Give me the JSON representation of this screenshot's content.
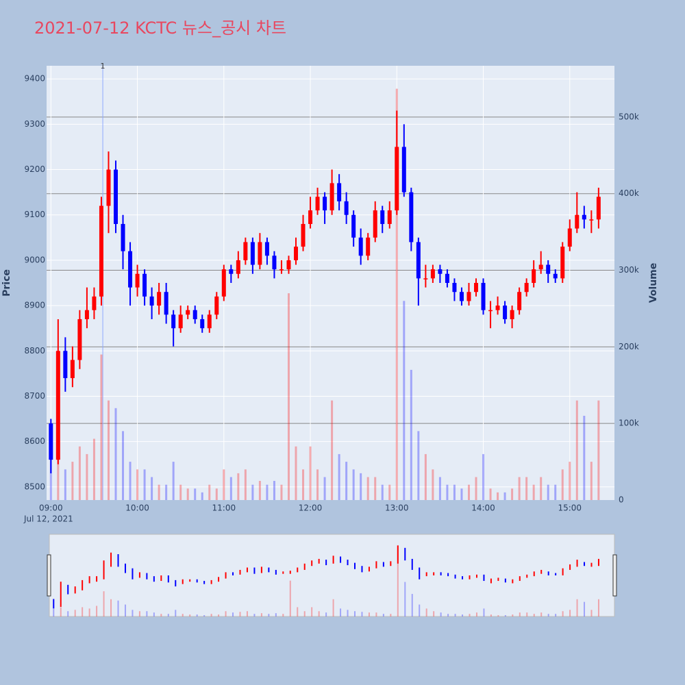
{
  "chart_data": {
    "type": "candlestick",
    "title": "2021-07-12 KCTC 뉴스_공시 차트",
    "title_color": "#e8475f",
    "y_label": "Price",
    "y2_label": "Volume",
    "x_date_label": "Jul 12, 2021",
    "increasing_color": "#ff0000",
    "decreasing_color": "#0000ff",
    "annotation": {
      "x": "09:36",
      "text": "1"
    },
    "x": [
      "09:00",
      "09:05",
      "09:10",
      "09:15",
      "09:20",
      "09:25",
      "09:30",
      "09:35",
      "09:40",
      "09:45",
      "09:50",
      "09:55",
      "10:00",
      "10:05",
      "10:10",
      "10:15",
      "10:20",
      "10:25",
      "10:30",
      "10:35",
      "10:40",
      "10:45",
      "10:50",
      "10:55",
      "11:00",
      "11:05",
      "11:10",
      "11:15",
      "11:20",
      "11:25",
      "11:30",
      "11:35",
      "11:40",
      "11:45",
      "11:50",
      "11:55",
      "12:00",
      "12:05",
      "12:10",
      "12:15",
      "12:20",
      "12:25",
      "12:30",
      "12:35",
      "12:40",
      "12:45",
      "12:50",
      "12:55",
      "13:00",
      "13:05",
      "13:10",
      "13:15",
      "13:20",
      "13:25",
      "13:30",
      "13:35",
      "13:40",
      "13:45",
      "13:50",
      "13:55",
      "14:00",
      "14:05",
      "14:10",
      "14:15",
      "14:20",
      "14:25",
      "14:30",
      "14:35",
      "14:40",
      "14:45",
      "14:50",
      "14:55",
      "15:00",
      "15:05",
      "15:10",
      "15:15",
      "15:20"
    ],
    "open": [
      8640,
      8560,
      8800,
      8740,
      8780,
      8870,
      8890,
      8920,
      9120,
      9200,
      9080,
      9020,
      8940,
      8970,
      8920,
      8900,
      8930,
      8880,
      8850,
      8880,
      8890,
      8870,
      8850,
      8880,
      8920,
      8980,
      8970,
      9000,
      9040,
      8990,
      9040,
      9010,
      8980,
      8980,
      9000,
      9030,
      9080,
      9110,
      9140,
      9110,
      9170,
      9130,
      9100,
      9050,
      9010,
      9050,
      9110,
      9080,
      9110,
      9250,
      9150,
      9040,
      8960,
      8960,
      8980,
      8970,
      8950,
      8930,
      8910,
      8930,
      8950,
      8890,
      8890,
      8900,
      8870,
      8890,
      8930,
      8950,
      8980,
      8990,
      8970,
      8960,
      9030,
      9070,
      9100,
      9090,
      9090
    ],
    "high": [
      8650,
      8870,
      8830,
      8810,
      8890,
      8940,
      8940,
      9140,
      9240,
      9220,
      9100,
      9040,
      8990,
      8980,
      8940,
      8950,
      8950,
      8890,
      8900,
      8900,
      8900,
      8880,
      8890,
      8930,
      8990,
      8990,
      9020,
      9050,
      9050,
      9060,
      9050,
      9020,
      9000,
      9010,
      9050,
      9100,
      9140,
      9160,
      9150,
      9200,
      9190,
      9150,
      9110,
      9070,
      9060,
      9130,
      9120,
      9130,
      9330,
      9300,
      9160,
      9050,
      8990,
      8990,
      8990,
      8980,
      8960,
      8940,
      8950,
      8960,
      8960,
      8910,
      8920,
      8910,
      8900,
      8940,
      8960,
      9000,
      9020,
      9000,
      8980,
      9040,
      9090,
      9150,
      9120,
      9110,
      9160
    ],
    "low": [
      8530,
      8550,
      8710,
      8720,
      8760,
      8850,
      8870,
      8900,
      9060,
      9060,
      8980,
      8900,
      8920,
      8900,
      8870,
      8880,
      8860,
      8810,
      8840,
      8870,
      8860,
      8840,
      8840,
      8870,
      8910,
      8950,
      8960,
      8990,
      8970,
      8980,
      8990,
      8960,
      8970,
      8970,
      8990,
      9020,
      9070,
      9100,
      9080,
      9100,
      9110,
      9080,
      9030,
      8990,
      9000,
      9040,
      9060,
      9070,
      9100,
      9140,
      9020,
      8900,
      8940,
      8950,
      8950,
      8940,
      8910,
      8900,
      8900,
      8920,
      8880,
      8850,
      8880,
      8860,
      8850,
      8880,
      8920,
      8940,
      8970,
      8950,
      8950,
      8950,
      9020,
      9060,
      9070,
      9060,
      9070
    ],
    "close": [
      8560,
      8800,
      8740,
      8780,
      8870,
      8890,
      8920,
      9120,
      9200,
      9080,
      9020,
      8940,
      8970,
      8920,
      8900,
      8930,
      8880,
      8850,
      8880,
      8890,
      8870,
      8850,
      8880,
      8920,
      8980,
      8970,
      9000,
      9040,
      8990,
      9040,
      9010,
      8980,
      8980,
      9000,
      9030,
      9080,
      9110,
      9140,
      9110,
      9170,
      9130,
      9100,
      9050,
      9010,
      9050,
      9110,
      9080,
      9110,
      9250,
      9150,
      9040,
      8960,
      8960,
      8980,
      8970,
      8950,
      8930,
      8910,
      8930,
      8950,
      8890,
      8890,
      8900,
      8870,
      8890,
      8930,
      8950,
      8980,
      8990,
      8970,
      8960,
      9030,
      9070,
      9100,
      9090,
      9090,
      9140
    ],
    "volume": [
      60000,
      70000,
      40000,
      50000,
      70000,
      60000,
      80000,
      190000,
      130000,
      120000,
      90000,
      50000,
      40000,
      40000,
      30000,
      20000,
      20000,
      50000,
      20000,
      15000,
      15000,
      10000,
      20000,
      15000,
      40000,
      30000,
      35000,
      40000,
      20000,
      25000,
      20000,
      25000,
      20000,
      270000,
      70000,
      40000,
      70000,
      40000,
      30000,
      130000,
      60000,
      50000,
      40000,
      35000,
      30000,
      30000,
      20000,
      20000,
      537000,
      260000,
      170000,
      90000,
      60000,
      40000,
      30000,
      20000,
      20000,
      15000,
      20000,
      30000,
      60000,
      15000,
      10000,
      10000,
      15000,
      30000,
      30000,
      20000,
      30000,
      20000,
      20000,
      40000,
      50000,
      130000,
      110000,
      50000,
      130000
    ],
    "xlim": [
      "08:57",
      "15:31"
    ],
    "xticks": [
      "09:00",
      "10:00",
      "11:00",
      "12:00",
      "13:00",
      "14:00",
      "15:00"
    ],
    "ylim": [
      8471,
      9429
    ],
    "yticks": [
      8500,
      8600,
      8700,
      8800,
      8900,
      9000,
      9100,
      9200,
      9300,
      9400
    ],
    "y2lim": [
      0,
      567000
    ],
    "y2ticks": [
      0,
      {
        "value": 100000,
        "label": "100k"
      },
      {
        "value": 200000,
        "label": "200k"
      },
      {
        "value": 300000,
        "label": "300k"
      },
      {
        "value": 400000,
        "label": "400k"
      },
      {
        "value": 500000,
        "label": "500k"
      }
    ],
    "grid": true
  }
}
